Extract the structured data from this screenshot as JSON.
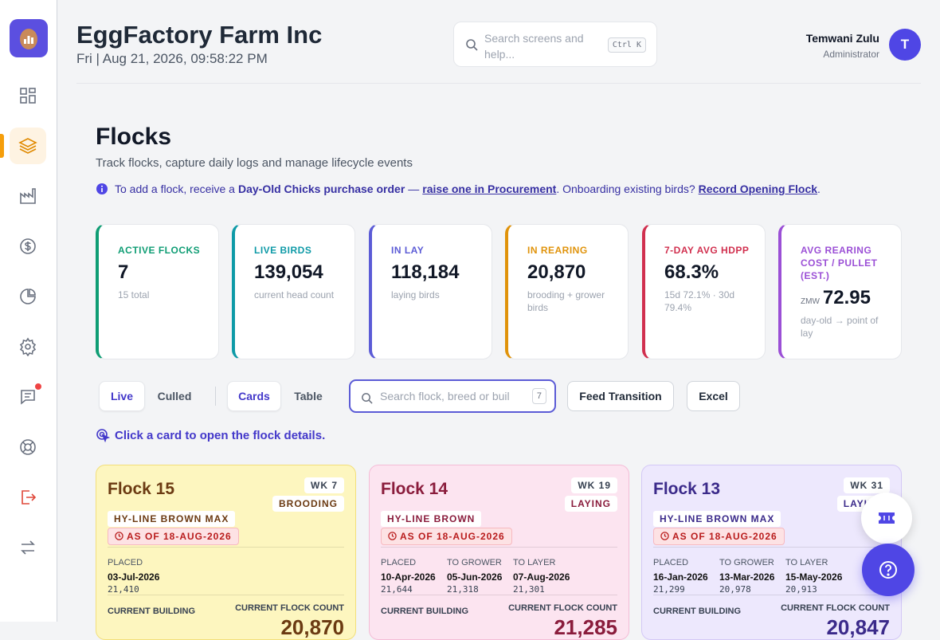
{
  "header": {
    "company": "EggFactory Farm Inc",
    "datetime": "Fri | Aug 21, 2026, 09:58:22 PM",
    "search_placeholder": "Search screens and help...",
    "shortcut": "Ctrl K",
    "user_name": "Temwani Zulu",
    "user_role": "Administrator",
    "avatar": "T"
  },
  "page": {
    "title": "Flocks",
    "subtitle": "Track flocks, capture daily logs and manage lifecycle events",
    "info": {
      "lead": "To add a flock, receive a",
      "strong": "Day-Old Chicks purchase order",
      "dash": "—",
      "link1": "raise one in Procurement",
      "middle": ". Onboarding existing birds?",
      "link2": "Record Opening Flock",
      "end": "."
    }
  },
  "kpis": [
    {
      "label": "ACTIVE FLOCKS",
      "value": "7",
      "note": "15 total",
      "color": "#0f9d74"
    },
    {
      "label": "LIVE BIRDS",
      "value": "139,054",
      "note": "current head count",
      "color": "#0e9aa7"
    },
    {
      "label": "IN LAY",
      "value": "118,184",
      "note": "laying birds",
      "color": "#5b5bd6"
    },
    {
      "label": "IN REARING",
      "value": "20,870",
      "note": "brooding + grower birds",
      "color": "#e0930b"
    },
    {
      "label": "7-DAY AVG HDPP",
      "value": "68.3%",
      "note": "15d 72.1% · 30d 79.4%",
      "color": "#d1304f"
    },
    {
      "label": "AVG REARING COST / PULLET (EST.)",
      "prefix": "ZMW",
      "value": "72.95",
      "note": "day-old → point of lay",
      "color": "#9b4fd6"
    }
  ],
  "toolbar": {
    "status_tabs": [
      "Live",
      "Culled"
    ],
    "view_tabs": [
      "Cards",
      "Table"
    ],
    "search_placeholder": "Search flock, breed or buil",
    "count": "7",
    "buttons": [
      "Feed Transition",
      "Excel"
    ],
    "hint": "Click a card to open the flock details."
  },
  "flocks": [
    {
      "name": "Flock 15",
      "week": "WK 7",
      "stage": "BROODING",
      "breed": "HY-LINE BROWN MAX",
      "as_of": "AS OF 18-AUG-2026",
      "milestones": [
        {
          "label": "PLACED",
          "date": "03-Jul-2026",
          "count": "21,410"
        }
      ],
      "building_label": "CURRENT BUILDING",
      "count_label": "CURRENT FLOCK COUNT",
      "count": "20,870",
      "bg": "#fdf6bf",
      "border": "#f2df7a",
      "text": "#6b3a12"
    },
    {
      "name": "Flock 14",
      "week": "WK 19",
      "stage": "LAYING",
      "breed": "HY-LINE BROWN",
      "as_of": "AS OF 18-AUG-2026",
      "milestones": [
        {
          "label": "PLACED",
          "date": "10-Apr-2026",
          "count": "21,644"
        },
        {
          "label": "TO GROWER",
          "date": "05-Jun-2026",
          "count": "21,318"
        },
        {
          "label": "TO LAYER",
          "date": "07-Aug-2026",
          "count": "21,301"
        }
      ],
      "building_label": "CURRENT BUILDING",
      "count_label": "CURRENT FLOCK COUNT",
      "count": "21,285",
      "bg": "#fce4f0",
      "border": "#f4bcd6",
      "text": "#8a1c3c"
    },
    {
      "name": "Flock 13",
      "week": "WK 31",
      "stage": "LAYING",
      "breed": "HY-LINE BROWN MAX",
      "as_of": "AS OF 18-AUG-2026",
      "milestones": [
        {
          "label": "PLACED",
          "date": "16-Jan-2026",
          "count": "21,299"
        },
        {
          "label": "TO GROWER",
          "date": "13-Mar-2026",
          "count": "20,978"
        },
        {
          "label": "TO LAYER",
          "date": "15-May-2026",
          "count": "20,913"
        }
      ],
      "building_label": "CURRENT BUILDING",
      "count_label": "CURRENT FLOCK COUNT",
      "count": "20,847",
      "bg": "#ede8fd",
      "border": "#d3c8f6",
      "text": "#3b2a8a"
    }
  ]
}
